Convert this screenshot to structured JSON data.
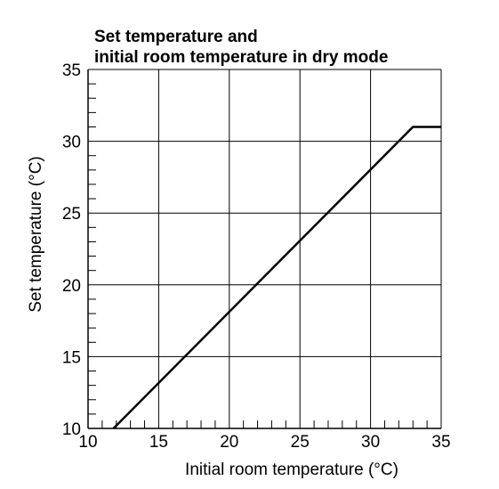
{
  "chart_data": {
    "type": "line",
    "title_lines": [
      "Set temperature and",
      "initial room temperature in dry mode"
    ],
    "xlabel": "Initial room temperature (°C)",
    "ylabel": "Set temperature (°C)",
    "xlim": [
      10,
      35
    ],
    "ylim": [
      10,
      35
    ],
    "x_ticks": [
      10,
      15,
      20,
      25,
      30,
      35
    ],
    "y_ticks": [
      10,
      15,
      20,
      25,
      30,
      35
    ],
    "x_minor_step": 1,
    "y_minor_step": 1,
    "grid": true,
    "series": [
      {
        "x": [
          11.8,
          33,
          35
        ],
        "y": [
          10,
          31,
          31
        ]
      }
    ]
  }
}
